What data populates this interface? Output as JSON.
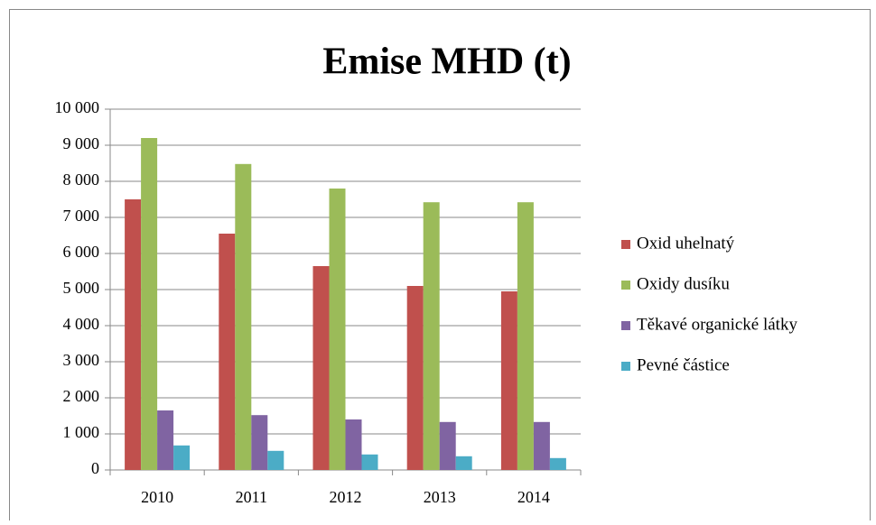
{
  "chart_data": {
    "type": "bar",
    "title": "Emise MHD (t)",
    "categories": [
      "2010",
      "2011",
      "2012",
      "2013",
      "2014"
    ],
    "series": [
      {
        "name": "Oxid uhelnatý",
        "color": "#c0504d",
        "values": [
          7500,
          6550,
          5650,
          5100,
          4950
        ]
      },
      {
        "name": "Oxidy dusíku",
        "color": "#9bbb59",
        "values": [
          9200,
          8480,
          7800,
          7420,
          7420
        ]
      },
      {
        "name": "Těkavé organické látky",
        "color": "#8064a2",
        "values": [
          1650,
          1520,
          1400,
          1330,
          1330
        ]
      },
      {
        "name": "Pevné částice",
        "color": "#4bacc6",
        "values": [
          680,
          530,
          430,
          380,
          330
        ]
      }
    ],
    "ylim": [
      0,
      10000
    ],
    "yticks": [
      0,
      {
        "value": 1000,
        "label": "1 000"
      },
      {
        "value": 2000,
        "label": "2 000"
      },
      {
        "value": 3000,
        "label": "3 000"
      },
      {
        "value": 4000,
        "label": "4 000"
      },
      {
        "value": 5000,
        "label": "5 000"
      },
      {
        "value": 6000,
        "label": "6 000"
      },
      {
        "value": 7000,
        "label": "7 000"
      },
      {
        "value": 8000,
        "label": "8 000"
      },
      {
        "value": 9000,
        "label": "9 000"
      },
      {
        "value": 10000,
        "label": "10 000"
      }
    ],
    "grid": true,
    "legend": "right"
  }
}
